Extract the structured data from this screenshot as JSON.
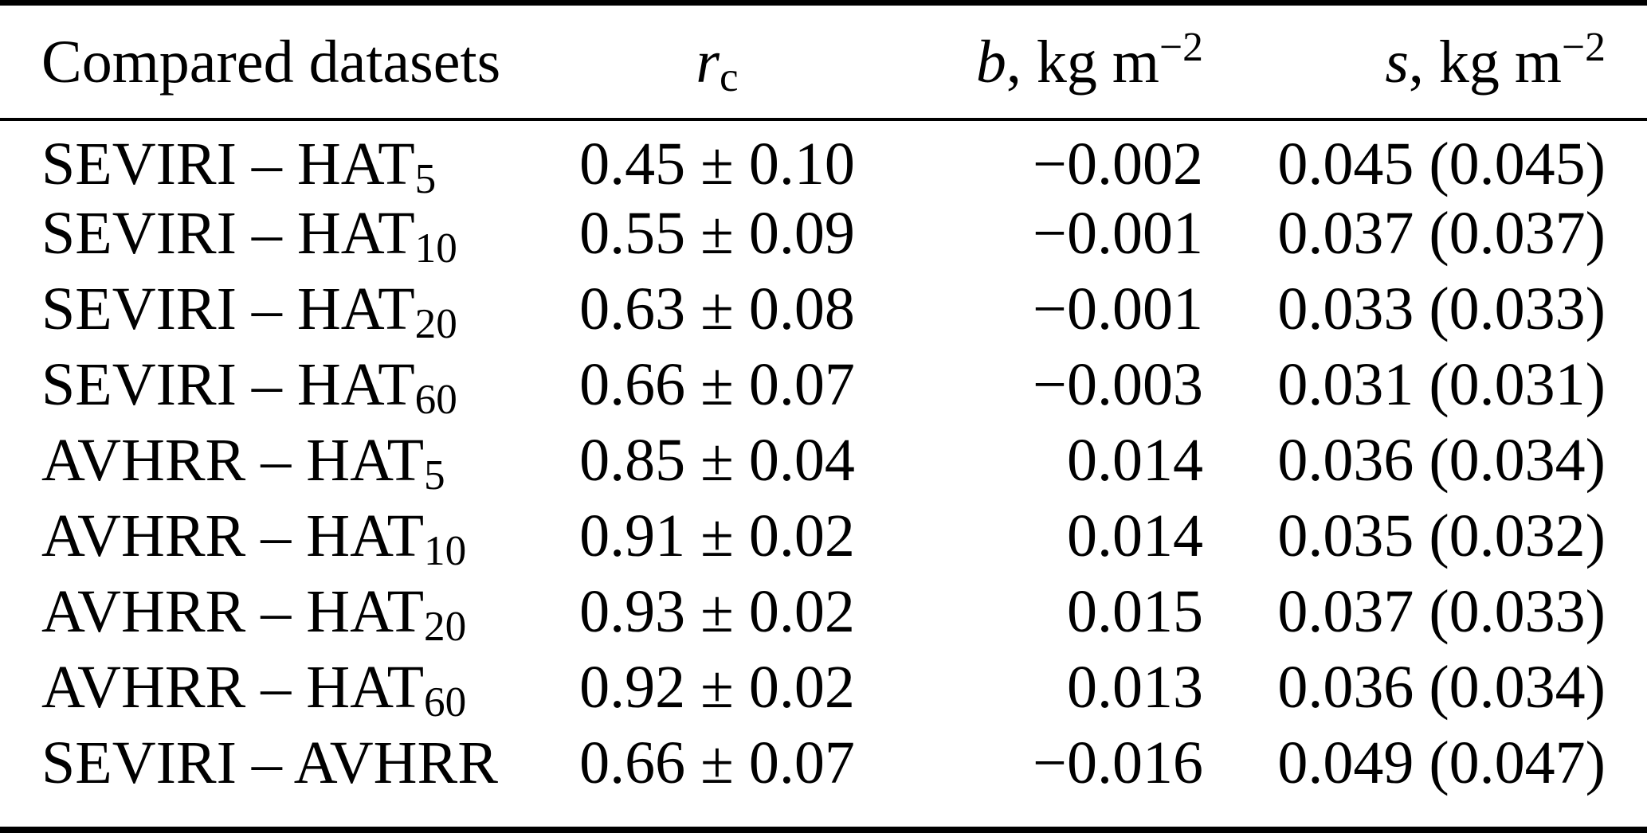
{
  "table": {
    "colors": {
      "text": "#000000",
      "background": "#ffffff",
      "rule": "#000000"
    },
    "headers": {
      "datasets": "Compared datasets",
      "rc_symbol": "r",
      "rc_sub": "c",
      "b_symbol": "b",
      "b_unit": ", kg m",
      "b_sup": "−2",
      "s_symbol": "s",
      "s_unit": ", kg m",
      "s_sup": "−2"
    },
    "rows": [
      {
        "dataset": "SEVIRI – HAT",
        "dataset_sub": "5",
        "rc": "0.45 ± 0.10",
        "b": "−0.002",
        "s": "0.045 (0.045)"
      },
      {
        "dataset": "SEVIRI – HAT",
        "dataset_sub": "10",
        "rc": "0.55 ± 0.09",
        "b": "−0.001",
        "s": "0.037 (0.037)"
      },
      {
        "dataset": "SEVIRI – HAT",
        "dataset_sub": "20",
        "rc": "0.63 ± 0.08",
        "b": "−0.001",
        "s": "0.033 (0.033)"
      },
      {
        "dataset": "SEVIRI – HAT",
        "dataset_sub": "60",
        "rc": "0.66 ± 0.07",
        "b": "−0.003",
        "s": "0.031 (0.031)"
      },
      {
        "dataset": "AVHRR – HAT",
        "dataset_sub": "5",
        "rc": "0.85 ± 0.04",
        "b": "0.014",
        "s": "0.036 (0.034)"
      },
      {
        "dataset": "AVHRR – HAT",
        "dataset_sub": "10",
        "rc": "0.91 ± 0.02",
        "b": "0.014",
        "s": "0.035 (0.032)"
      },
      {
        "dataset": "AVHRR – HAT",
        "dataset_sub": "20",
        "rc": "0.93 ± 0.02",
        "b": "0.015",
        "s": "0.037 (0.033)"
      },
      {
        "dataset": "AVHRR – HAT",
        "dataset_sub": "60",
        "rc": "0.92 ± 0.02",
        "b": "0.013",
        "s": "0.036 (0.034)"
      },
      {
        "dataset": "SEVIRI – AVHRR",
        "dataset_sub": "",
        "rc": "0.66 ± 0.07",
        "b": "−0.016",
        "s": "0.049 (0.047)"
      }
    ]
  }
}
